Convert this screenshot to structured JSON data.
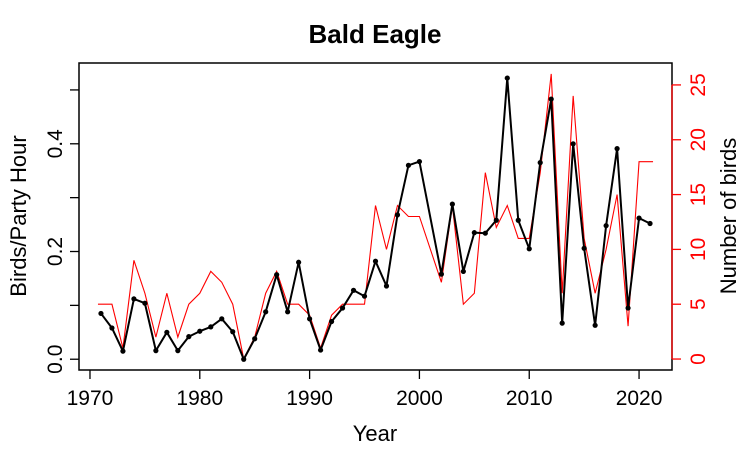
{
  "chart_data": {
    "type": "line",
    "title": "Bald Eagle",
    "xlabel": "Year",
    "ylabel": "Birds/Party Hour",
    "y2label": "Number of birds",
    "xlim": [
      1969,
      2023
    ],
    "ylim": [
      -0.02,
      0.55
    ],
    "y2lim": [
      -1.0,
      27.0
    ],
    "xticks": [
      1970,
      1980,
      1990,
      2000,
      2010,
      2020
    ],
    "xtick_labels": [
      "1970",
      "1980",
      "1990",
      "2000",
      "2010",
      "2020"
    ],
    "yticks": [
      0.0,
      0.2,
      0.4
    ],
    "ytick_labels": [
      "0.0",
      "0.2",
      "0.4"
    ],
    "y2ticks": [
      0,
      5,
      10,
      15,
      20,
      25
    ],
    "y2tick_labels": [
      "0",
      "5",
      "10",
      "15",
      "20",
      "25"
    ],
    "grid": false,
    "colors": {
      "left": "#000000",
      "right": "#ff0000"
    },
    "series": [
      {
        "axis": "left",
        "style": "line-with-points",
        "color": "#000000",
        "x": [
          1971,
          1972,
          1973,
          1974,
          1975,
          1976,
          1977,
          1978,
          1979,
          1980,
          1981,
          1982,
          1983,
          1984,
          1985,
          1986,
          1987,
          1988,
          1989,
          1990,
          1991,
          1992,
          1993,
          1994,
          1995,
          1996,
          1997,
          1998,
          1999,
          2000,
          2002,
          2003,
          2004,
          2005,
          2006,
          2007,
          2008,
          2009,
          2010,
          2011,
          2012,
          2013,
          2014,
          2015,
          2016,
          2017,
          2018,
          2019,
          2020,
          2021
        ],
        "values": [
          0.085,
          0.058,
          0.015,
          0.112,
          0.104,
          0.016,
          0.05,
          0.016,
          0.042,
          0.052,
          0.06,
          0.075,
          0.051,
          0.0,
          0.038,
          0.088,
          0.157,
          0.088,
          0.18,
          0.075,
          0.017,
          0.07,
          0.095,
          0.128,
          0.117,
          0.182,
          0.136,
          0.268,
          0.36,
          0.367,
          0.158,
          0.288,
          0.163,
          0.235,
          0.234,
          0.258,
          0.522,
          0.258,
          0.205,
          0.365,
          0.483,
          0.067,
          0.4,
          0.206,
          0.063,
          0.248,
          0.391,
          0.095,
          0.262,
          0.252
        ]
      },
      {
        "axis": "right",
        "style": "step",
        "color": "#ff0000",
        "x": [
          1971,
          1972,
          1973,
          1974,
          1975,
          1976,
          1977,
          1978,
          1979,
          1980,
          1981,
          1982,
          1983,
          1984,
          1985,
          1986,
          1987,
          1988,
          1989,
          1990,
          1991,
          1992,
          1993,
          1994,
          1995,
          1996,
          1997,
          1998,
          1999,
          2000,
          2002,
          2003,
          2004,
          2005,
          2006,
          2007,
          2008,
          2009,
          2010,
          2011,
          2012,
          2013,
          2014,
          2015,
          2016,
          2017,
          2018,
          2019,
          2020,
          2021
        ],
        "values": [
          5,
          5,
          1,
          9,
          6,
          2,
          6,
          2,
          5,
          6,
          8,
          7,
          5,
          0,
          2,
          6,
          8,
          5,
          5,
          4,
          1,
          4,
          5,
          5,
          5,
          14,
          10,
          14,
          13,
          13,
          7,
          14,
          5,
          6,
          17,
          12,
          14,
          11,
          11,
          17,
          26,
          6,
          24,
          11,
          6,
          10,
          15,
          3,
          18,
          18
        ]
      }
    ]
  }
}
